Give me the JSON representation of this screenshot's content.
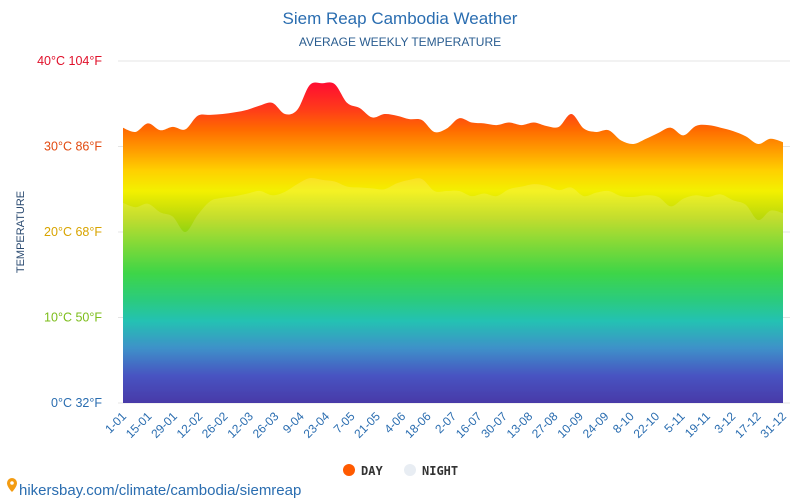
{
  "chart_data": {
    "type": "area",
    "title": "Siem Reap Cambodia Weather",
    "subtitle": "AVERAGE WEEKLY TEMPERATURE",
    "ylabel": "TEMPERATURE",
    "ylim": [
      0,
      40
    ],
    "yticks": [
      {
        "value": 0,
        "label": "0°C 32°F",
        "color": "#2a6db0"
      },
      {
        "value": 10,
        "label": "10°C 50°F",
        "color": "#7cbd1a"
      },
      {
        "value": 20,
        "label": "20°C 68°F",
        "color": "#d8a400"
      },
      {
        "value": 30,
        "label": "30°C 86°F",
        "color": "#e24a10"
      },
      {
        "value": 40,
        "label": "40°C 104°F",
        "color": "#e0102a"
      }
    ],
    "x_tick_labels": [
      "1-01",
      "15-01",
      "29-01",
      "12-02",
      "26-02",
      "12-03",
      "26-03",
      "9-04",
      "23-04",
      "7-05",
      "21-05",
      "4-06",
      "18-06",
      "2-07",
      "16-07",
      "30-07",
      "13-08",
      "27-08",
      "10-09",
      "24-09",
      "8-10",
      "22-10",
      "5-11",
      "19-11",
      "3-12",
      "17-12",
      "31-12"
    ],
    "series": [
      {
        "name": "DAY",
        "color": "#ff5a00",
        "values": [
          32.2,
          31.7,
          32.7,
          31.9,
          32.3,
          32.0,
          33.6,
          33.7,
          33.8,
          34.0,
          34.3,
          34.8,
          35.1,
          33.8,
          34.3,
          37.2,
          37.4,
          37.3,
          35.1,
          34.5,
          33.4,
          33.8,
          33.6,
          33.2,
          33.1,
          31.7,
          32.1,
          33.3,
          32.8,
          32.7,
          32.5,
          32.8,
          32.5,
          32.8,
          32.4,
          32.3,
          33.8,
          32.1,
          31.7,
          31.9,
          30.7,
          30.3,
          30.9,
          31.6,
          32.2,
          31.3,
          32.4,
          32.5,
          32.2,
          31.8,
          31.2,
          30.3,
          30.9,
          30.5
        ]
      },
      {
        "name": "NIGHT",
        "color": "#e8edf3",
        "values": [
          23.4,
          22.9,
          23.3,
          22.3,
          21.8,
          20.0,
          22.0,
          23.6,
          24.0,
          24.2,
          24.5,
          24.8,
          24.3,
          24.7,
          25.6,
          26.3,
          26.1,
          25.9,
          25.3,
          25.2,
          25.1,
          25.0,
          25.7,
          26.1,
          26.2,
          24.8,
          24.8,
          24.8,
          24.2,
          24.5,
          24.2,
          25.0,
          25.3,
          25.6,
          25.4,
          24.9,
          25.2,
          24.2,
          24.6,
          24.8,
          24.2,
          24.1,
          24.3,
          24.1,
          23.0,
          23.9,
          24.3,
          24.1,
          24.4,
          23.7,
          23.2,
          21.4,
          22.5,
          22.2
        ]
      }
    ],
    "legend_position": "bottom-center",
    "grid": true
  },
  "footer": {
    "text": "hikersbay.com/climate/cambodia/siemreap"
  }
}
